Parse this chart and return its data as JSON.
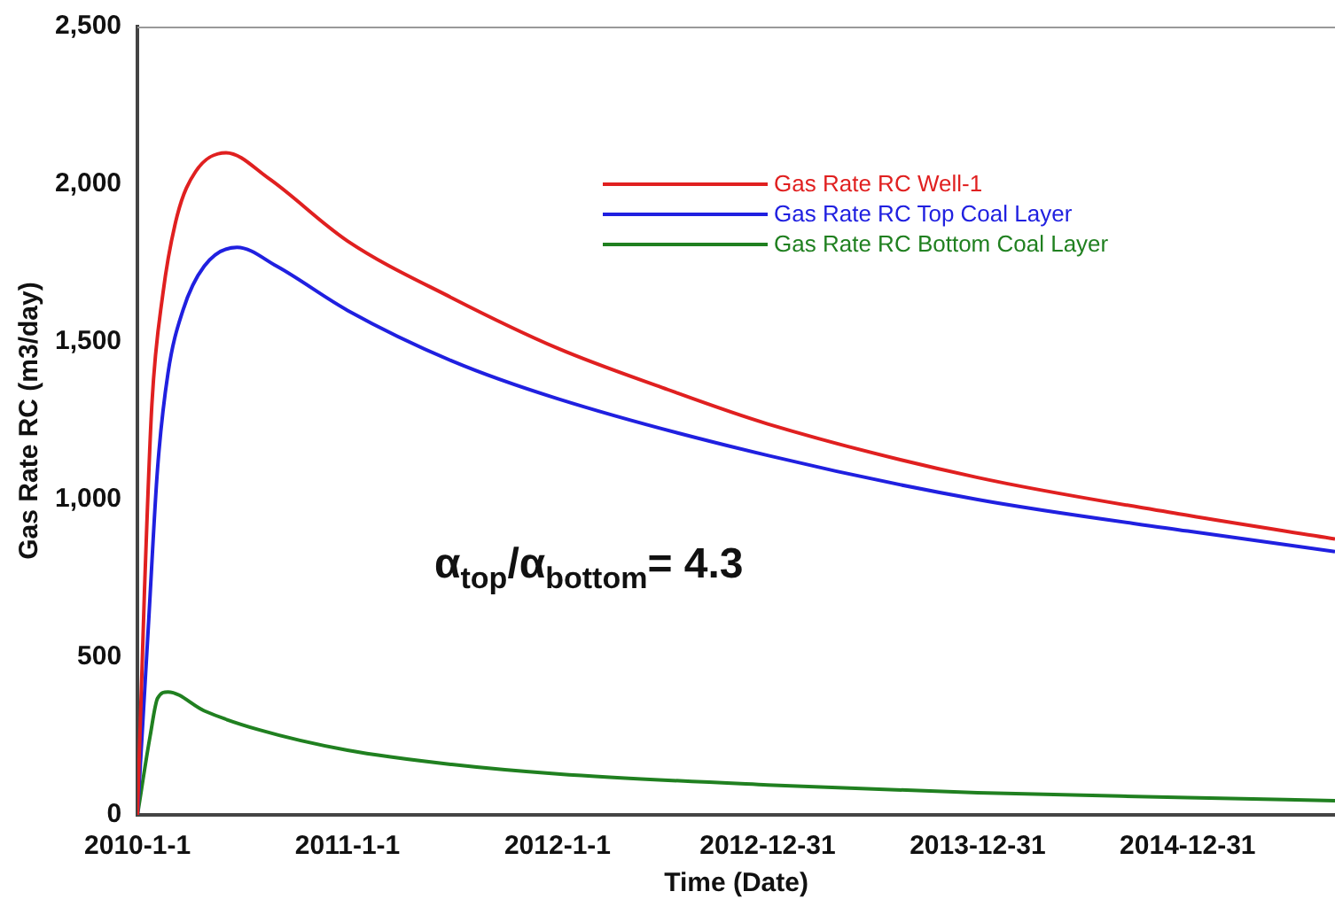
{
  "chart_data": {
    "type": "line",
    "xlabel": "Time (Date)",
    "ylabel": "Gas Rate RC (m3/day)",
    "annotations": [
      "α$_{top}$/α$_{bottom}$= 4.3"
    ],
    "xlim": [
      "2010-01-01",
      "2015-09-13"
    ],
    "xticks": [
      {
        "value": "2010-01-01",
        "label": "2010-1-1"
      },
      {
        "value": "2011-01-01",
        "label": "2011-1-1"
      },
      {
        "value": "2012-01-01",
        "label": "2012-1-1"
      },
      {
        "value": "2012-12-31",
        "label": "2012-12-31"
      },
      {
        "value": "2013-12-31",
        "label": "2013-12-31"
      },
      {
        "value": "2014-12-31",
        "label": "2014-12-31"
      }
    ],
    "ylim": [
      0,
      2500
    ],
    "yticks": [
      {
        "value": 0,
        "label": "0"
      },
      {
        "value": 500,
        "label": "500"
      },
      {
        "value": 1000,
        "label": "1,000"
      },
      {
        "value": 1500,
        "label": "1,500"
      },
      {
        "value": 2000,
        "label": "2,000"
      },
      {
        "value": 2500,
        "label": "2,500"
      }
    ],
    "grid": false,
    "legend": "top right",
    "marker": "none",
    "line_style": "solid",
    "series": [
      {
        "name": "Gas Rate RC Well-1",
        "color": "#e02020",
        "x": [
          "2010-01-01",
          "2010-01-13",
          "2010-01-26",
          "2010-02-14",
          "2010-03-11",
          "2010-04-12",
          "2010-06-04",
          "2010-08-16",
          "2011-01-01",
          "2011-07-01",
          "2012-01-01",
          "2012-07-01",
          "2012-12-31",
          "2013-12-31",
          "2014-12-31",
          "2015-09-13"
        ],
        "values": [
          0,
          700,
          1300,
          1650,
          1900,
          2040,
          2100,
          2020,
          1820,
          1640,
          1480,
          1355,
          1240,
          1070,
          950,
          875
        ]
      },
      {
        "name": "Gas Rate RC Top Coal Layer",
        "color": "#2020e0",
        "x": [
          "2010-01-01",
          "2010-01-20",
          "2010-02-05",
          "2010-02-23",
          "2010-03-21",
          "2010-04-27",
          "2010-06-23",
          "2010-08-31",
          "2011-01-01",
          "2011-07-01",
          "2012-01-01",
          "2012-12-31",
          "2013-12-31",
          "2014-12-31",
          "2015-09-13"
        ],
        "values": [
          0,
          600,
          1100,
          1400,
          1600,
          1740,
          1800,
          1740,
          1600,
          1440,
          1320,
          1140,
          1000,
          900,
          835
        ]
      },
      {
        "name": "Gas Rate RC Bottom Coal Layer",
        "color": "#208020",
        "x": [
          "2010-01-01",
          "2010-01-23",
          "2010-02-05",
          "2010-02-23",
          "2010-04-27",
          "2010-07-31",
          "2011-01-01",
          "2011-07-01",
          "2012-01-01",
          "2012-12-31",
          "2013-12-31",
          "2014-12-31",
          "2015-09-13"
        ],
        "values": [
          0,
          250,
          370,
          390,
          330,
          270,
          205,
          160,
          130,
          95,
          70,
          55,
          45
        ]
      }
    ]
  }
}
